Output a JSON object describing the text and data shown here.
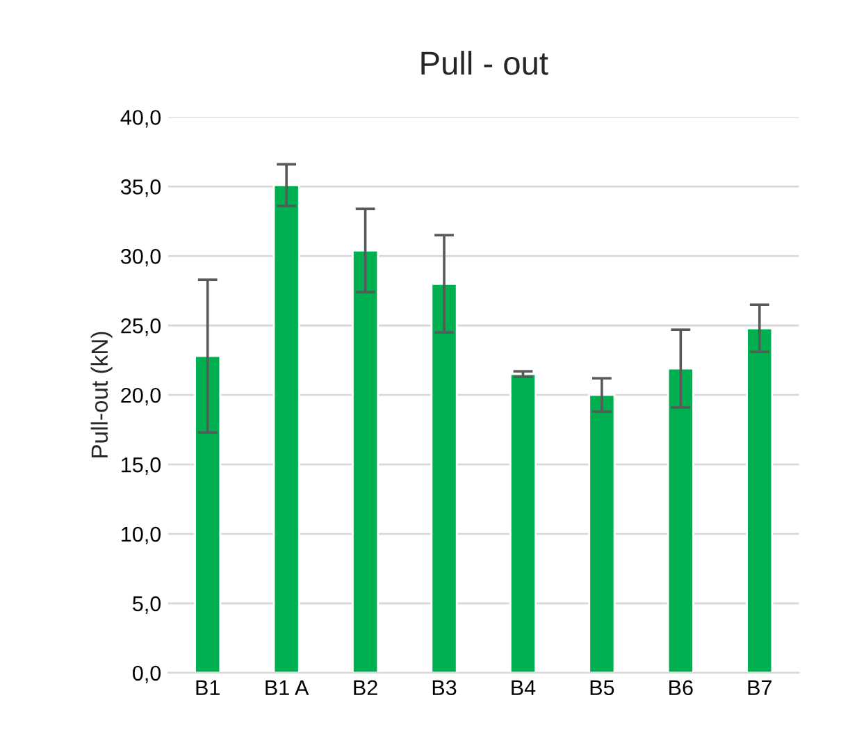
{
  "chart_data": {
    "type": "bar",
    "title": "Pull - out",
    "ylabel": "Pull-out (kN)",
    "categories": [
      "B1",
      "B1 A",
      "B2",
      "B3",
      "B4",
      "B5",
      "B6",
      "B7"
    ],
    "values": [
      22.8,
      35.1,
      30.4,
      28.0,
      21.5,
      20.0,
      21.9,
      24.8
    ],
    "errors": [
      5.5,
      1.5,
      3.0,
      3.5,
      0.2,
      1.2,
      2.8,
      1.7
    ],
    "color": "#00b050",
    "ylim": [
      0,
      40
    ],
    "yticks": [
      {
        "value": 0,
        "label": "0,0"
      },
      {
        "value": 5,
        "label": "5,0"
      },
      {
        "value": 10,
        "label": "10,0"
      },
      {
        "value": 15,
        "label": "15,0"
      },
      {
        "value": 20,
        "label": "20,0"
      },
      {
        "value": 25,
        "label": "25,0"
      },
      {
        "value": 30,
        "label": "30,0"
      },
      {
        "value": 35,
        "label": "35,0"
      },
      {
        "value": 40,
        "label": "40,0"
      }
    ],
    "grid": "y"
  }
}
